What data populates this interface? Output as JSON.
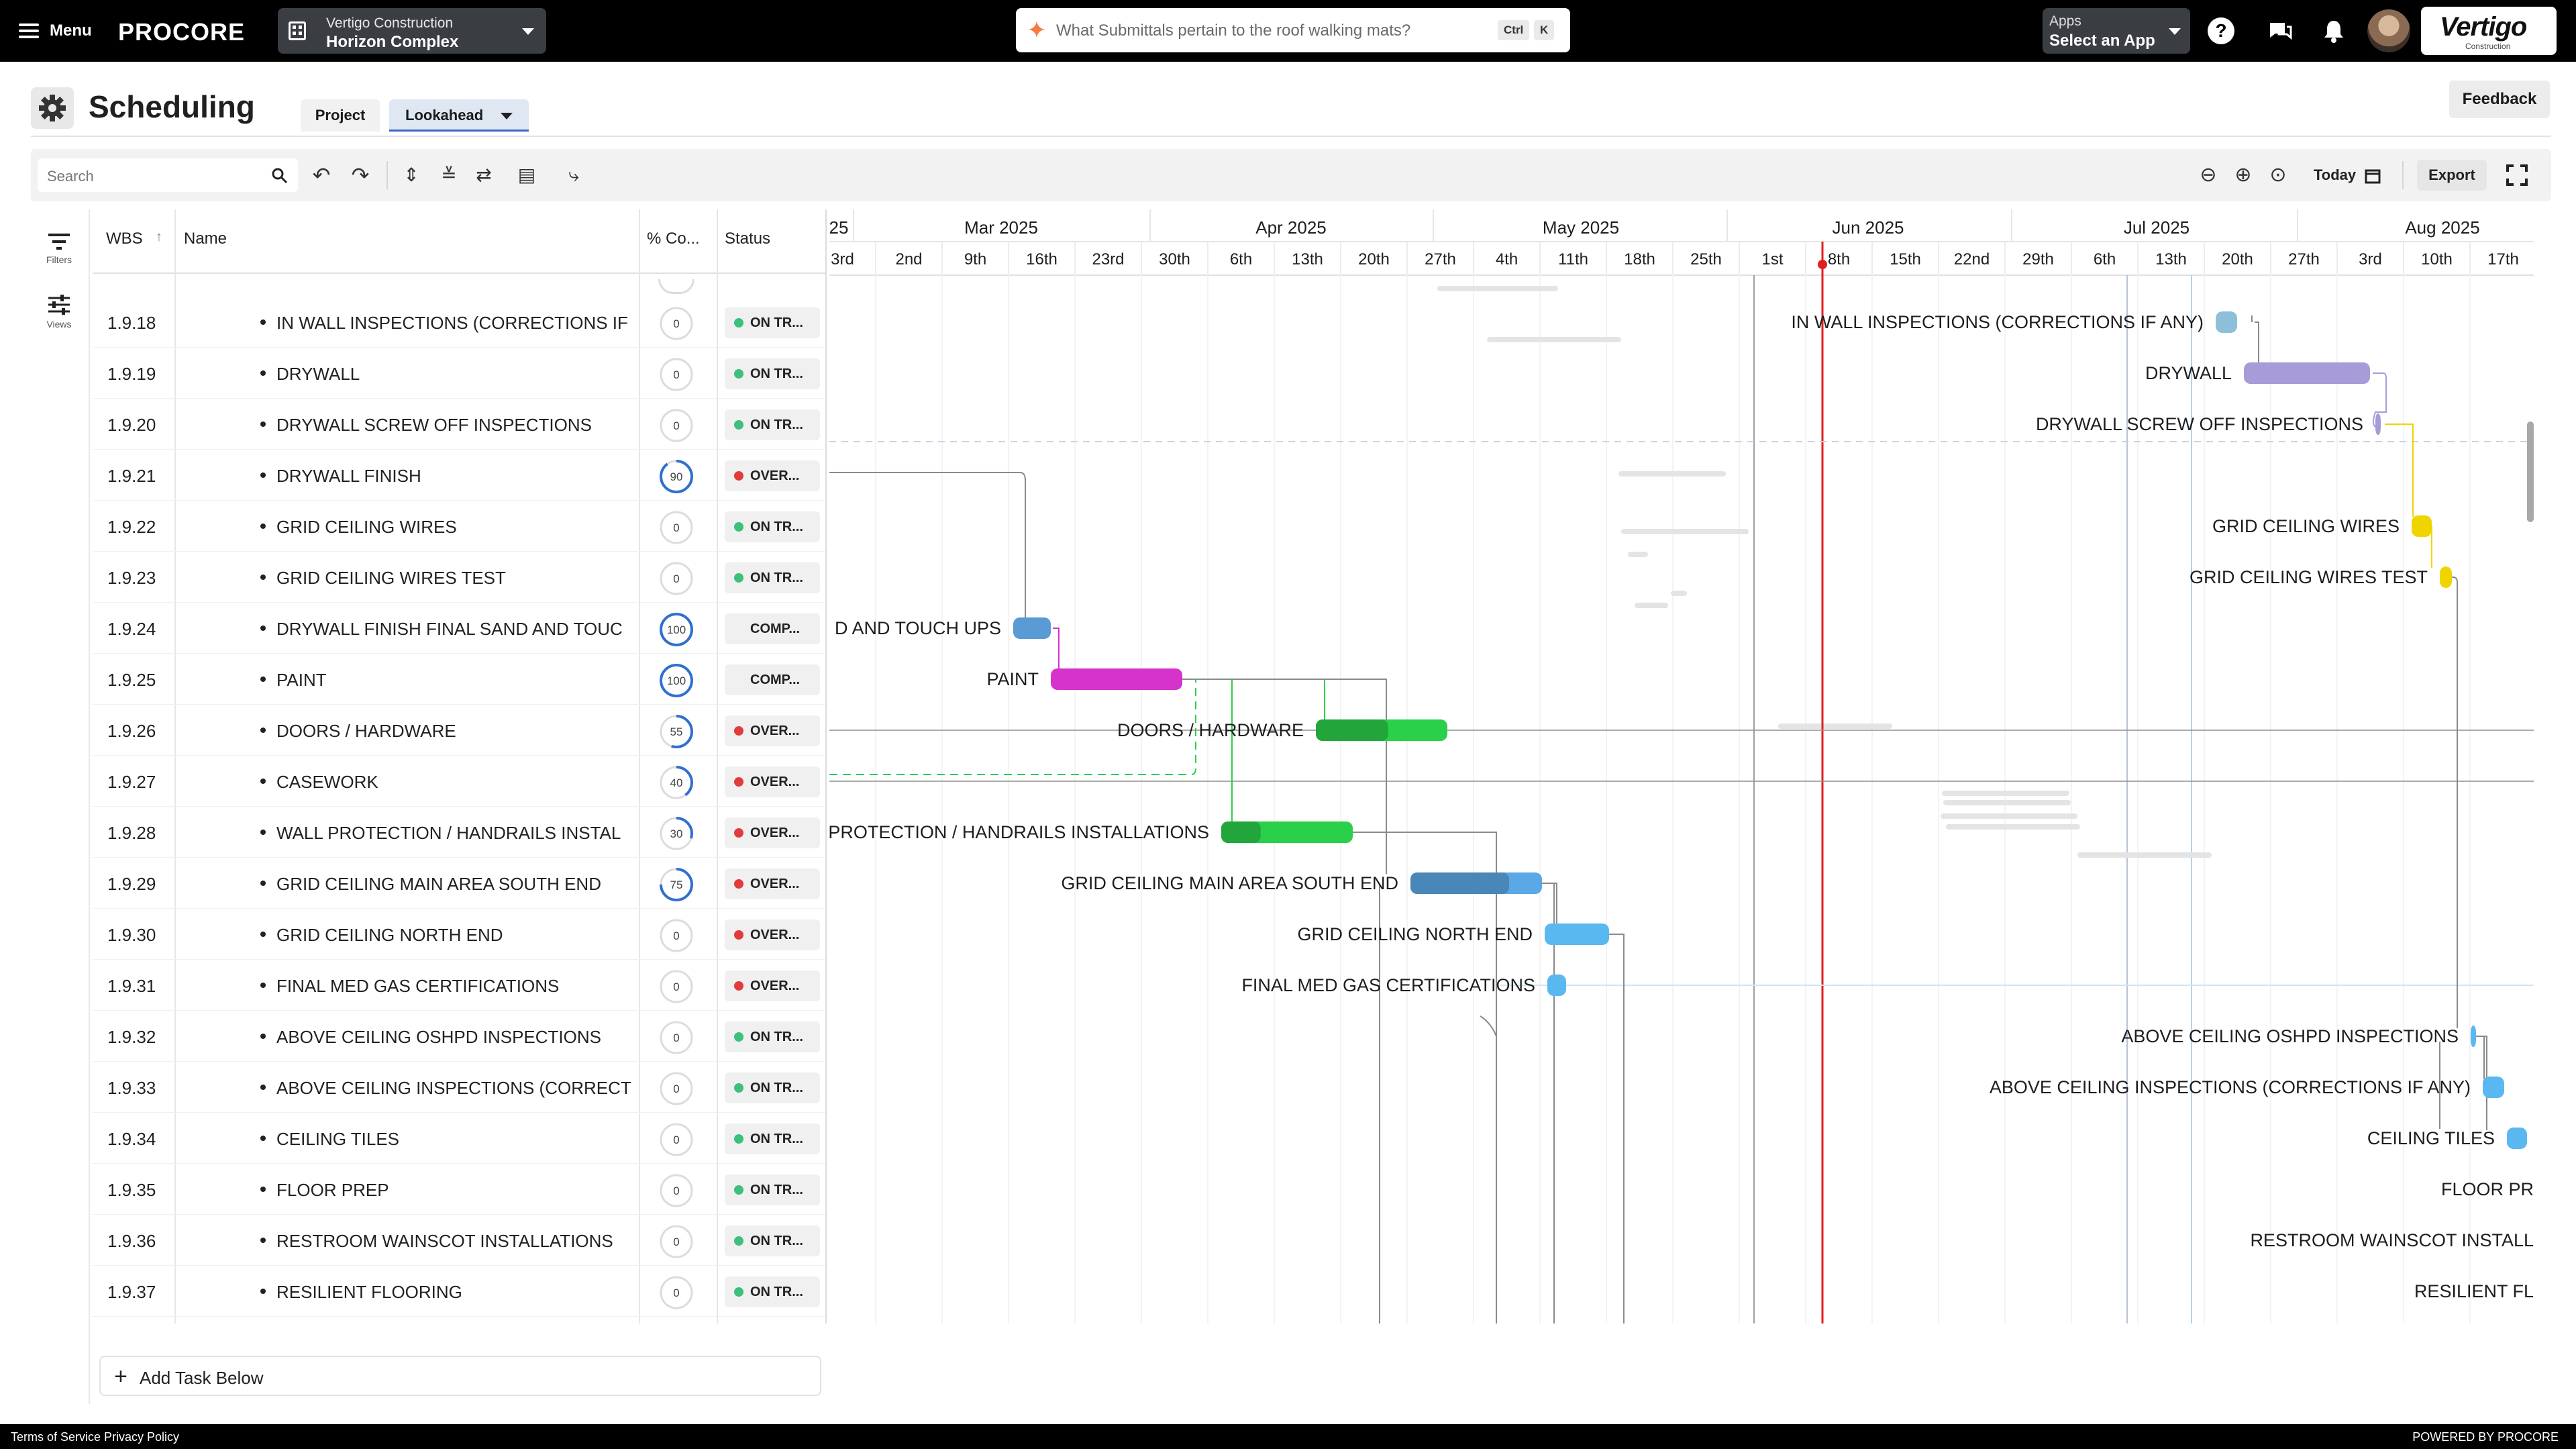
{
  "topbar": {
    "menu_label": "Menu",
    "logo": "PROCORE",
    "company": "Vertigo Construction",
    "project": "Horizon Complex",
    "search_placeholder": "What Submittals pertain to the roof walking mats?",
    "kbd_ctrl": "Ctrl",
    "kbd_k": "K",
    "apps_label": "Apps",
    "apps_value": "Select an App",
    "brand_name": "Vertigo",
    "brand_sub": "Construction"
  },
  "header": {
    "title": "Scheduling",
    "tabs": [
      "Project",
      "Lookahead"
    ],
    "feedback": "Feedback"
  },
  "toolbar": {
    "search_placeholder": "Search",
    "today": "Today",
    "export": "Export"
  },
  "rail": {
    "filters": "Filters",
    "views": "Views"
  },
  "grid": {
    "columns": {
      "wbs": "WBS",
      "name": "Name",
      "pct": "% Co...",
      "status": "Status"
    },
    "rows": [
      {
        "wbs": "1.9.18",
        "name": "IN WALL INSPECTIONS (CORRECTIONS IF",
        "pct": 0,
        "status": "ON TR...",
        "state": "on"
      },
      {
        "wbs": "1.9.19",
        "name": "DRYWALL",
        "pct": 0,
        "status": "ON TR...",
        "state": "on"
      },
      {
        "wbs": "1.9.20",
        "name": "DRYWALL SCREW OFF INSPECTIONS",
        "pct": 0,
        "status": "ON TR...",
        "state": "on"
      },
      {
        "wbs": "1.9.21",
        "name": "DRYWALL FINISH",
        "pct": 90,
        "status": "OVER...",
        "state": "over"
      },
      {
        "wbs": "1.9.22",
        "name": "GRID CEILING WIRES",
        "pct": 0,
        "status": "ON TR...",
        "state": "on"
      },
      {
        "wbs": "1.9.23",
        "name": "GRID CEILING WIRES TEST",
        "pct": 0,
        "status": "ON TR...",
        "state": "on"
      },
      {
        "wbs": "1.9.24",
        "name": "DRYWALL FINISH FINAL SAND AND TOUC",
        "pct": 100,
        "status": "COMP...",
        "state": "comp"
      },
      {
        "wbs": "1.9.25",
        "name": "PAINT",
        "pct": 100,
        "status": "COMP...",
        "state": "comp"
      },
      {
        "wbs": "1.9.26",
        "name": "DOORS / HARDWARE",
        "pct": 55,
        "status": "OVER...",
        "state": "over"
      },
      {
        "wbs": "1.9.27",
        "name": "CASEWORK",
        "pct": 40,
        "status": "OVER...",
        "state": "over"
      },
      {
        "wbs": "1.9.28",
        "name": "WALL PROTECTION / HANDRAILS INSTAL",
        "pct": 30,
        "status": "OVER...",
        "state": "over"
      },
      {
        "wbs": "1.9.29",
        "name": "GRID CEILING MAIN AREA SOUTH END",
        "pct": 75,
        "status": "OVER...",
        "state": "over"
      },
      {
        "wbs": "1.9.30",
        "name": "GRID CEILING NORTH END",
        "pct": 0,
        "status": "OVER...",
        "state": "over"
      },
      {
        "wbs": "1.9.31",
        "name": "FINAL MED GAS CERTIFICATIONS",
        "pct": 0,
        "status": "OVER...",
        "state": "over"
      },
      {
        "wbs": "1.9.32",
        "name": "ABOVE CEILING OSHPD INSPECTIONS",
        "pct": 0,
        "status": "ON TR...",
        "state": "on"
      },
      {
        "wbs": "1.9.33",
        "name": "ABOVE CEILING INSPECTIONS (CORRECT",
        "pct": 0,
        "status": "ON TR...",
        "state": "on"
      },
      {
        "wbs": "1.9.34",
        "name": "CEILING TILES",
        "pct": 0,
        "status": "ON TR...",
        "state": "on"
      },
      {
        "wbs": "1.9.35",
        "name": "FLOOR PREP",
        "pct": 0,
        "status": "ON TR...",
        "state": "on"
      },
      {
        "wbs": "1.9.36",
        "name": "RESTROOM WAINSCOT INSTALLATIONS",
        "pct": 0,
        "status": "ON TR...",
        "state": "on"
      },
      {
        "wbs": "1.9.37",
        "name": "RESILIENT FLOORING",
        "pct": 0,
        "status": "ON TR...",
        "state": "on"
      }
    ]
  },
  "gantt": {
    "months": [
      "25",
      "Mar 2025",
      "Apr 2025",
      "May 2025",
      "Jun 2025",
      "Jul 2025",
      "Aug 2025"
    ],
    "weeks": [
      "3rd",
      "2nd",
      "9th",
      "16th",
      "23rd",
      "30th",
      "6th",
      "13th",
      "20th",
      "27th",
      "4th",
      "11th",
      "18th",
      "25th",
      "1st",
      "8th",
      "15th",
      "22nd",
      "29th",
      "6th",
      "13th",
      "20th",
      "27th",
      "3rd",
      "10th",
      "17th"
    ],
    "bar_labels": [
      "IN WALL INSPECTIONS (CORRECTIONS IF ANY)",
      "DRYWALL",
      "DRYWALL SCREW OFF INSPECTIONS",
      "GRID CEILING WIRES",
      "GRID CEILING WIRES TEST",
      "D AND TOUCH UPS",
      "PAINT",
      "DOORS / HARDWARE",
      "PROTECTION / HANDRAILS INSTALLATIONS",
      "GRID CEILING MAIN AREA SOUTH END",
      "GRID CEILING NORTH END",
      "FINAL MED GAS CERTIFICATIONS",
      "ABOVE CEILING OSHPD INSPECTIONS",
      "ABOVE CEILING INSPECTIONS (CORRECTIONS IF ANY)",
      "CEILING TILES",
      "FLOOR PR",
      "RESTROOM WAINSCOT INSTALL",
      "RESILIENT FL"
    ]
  },
  "add_task": "Add Task Below",
  "footer": {
    "links": "Terms of Service  Privacy Policy",
    "powered": "POWERED BY PROCORE"
  },
  "colors": {
    "today_line": "#e02020",
    "on_track": "#3cc07a",
    "overdue": "#e23b3b",
    "paint": "#d633cc",
    "doors": "#2bd04a",
    "blue": "#5aa9e6",
    "drywall": "#a79bd8",
    "wires": "#f0d400",
    "progress_ring": "#2f6fcf"
  }
}
